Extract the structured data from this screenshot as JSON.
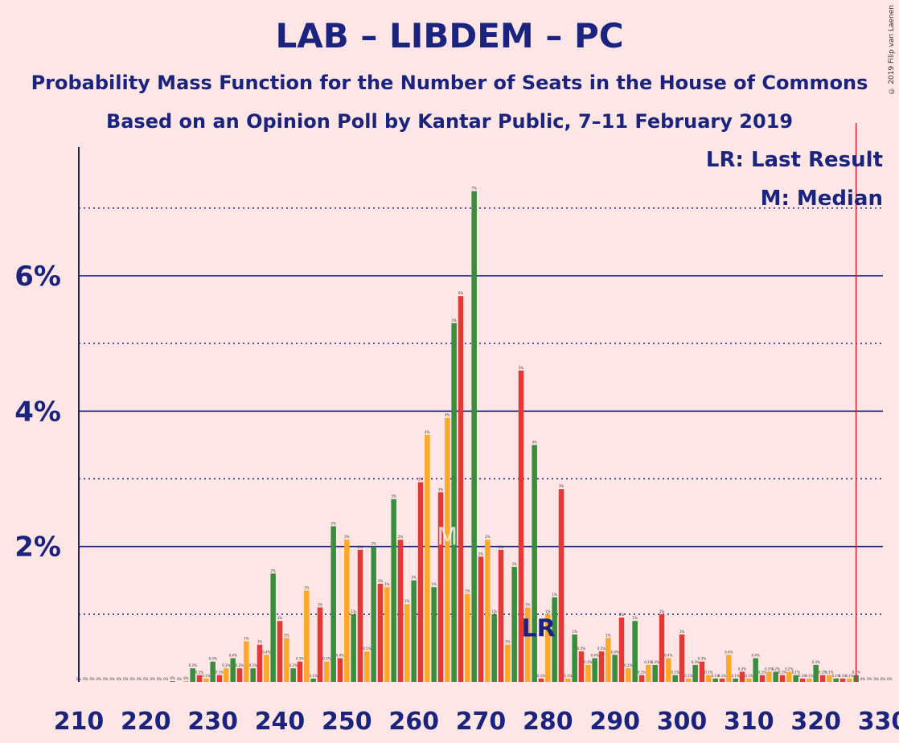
{
  "title": "LAB – LIBDEM – PC",
  "subtitle_1": "Probability Mass Function for the Number of Seats in the House of Commons",
  "subtitle_2": "Based on an Opinion Poll by Kantar Public, 7–11 February 2019",
  "copyright": "© 2019 Filip van Laenen",
  "legend": {
    "last_result": "LR: Last Result",
    "median": "M: Median"
  },
  "colors": {
    "background": "#FFE6E6",
    "text": "#1A237E",
    "series": [
      "#E53935",
      "#FFA726",
      "#388E3C"
    ],
    "majority_line": "#C62828"
  },
  "chart_data": {
    "type": "bar",
    "x_range": [
      210,
      330
    ],
    "x_tick_labels": [
      "210",
      "220",
      "230",
      "240",
      "250",
      "260",
      "270",
      "280",
      "290",
      "300",
      "310",
      "320",
      "330"
    ],
    "y_tick_labels": [
      "2%",
      "4%",
      "6%"
    ],
    "y_max_percent": 7.9,
    "grid": true,
    "legend_position": "top-right",
    "median_seats": 265,
    "last_result_seats": 278,
    "majority_seats": 326,
    "seats_start": 210,
    "values_percent": [
      0,
      0,
      0,
      0,
      0,
      0,
      0,
      0,
      0,
      0,
      0,
      0,
      0,
      0,
      0.01,
      0,
      0.01,
      0.2,
      0.1,
      0.05,
      0.3,
      0.1,
      0.2,
      0.35,
      0.2,
      0.6,
      0.2,
      0.55,
      0.4,
      1.6,
      0.9,
      0.65,
      0.2,
      0.3,
      1.35,
      0.05,
      1.1,
      0.3,
      2.3,
      0.35,
      2.1,
      1.0,
      1.95,
      0.45,
      2.0,
      1.45,
      1.4,
      2.7,
      2.1,
      1.15,
      1.5,
      2.95,
      3.65,
      1.4,
      2.8,
      3.9,
      5.3,
      5.7,
      1.3,
      7.25,
      1.85,
      2.1,
      1.0,
      1.95,
      0.55,
      1.7,
      4.6,
      1.1,
      3.5,
      0.05,
      1.0,
      1.25,
      2.85,
      0.05,
      0.7,
      0.45,
      0.25,
      0.35,
      0.45,
      0.65,
      0.4,
      0.95,
      0.2,
      0.9,
      0.1,
      0.25,
      0.25,
      1.0,
      0.35,
      0.1,
      0.7,
      0.05,
      0.25,
      0.3,
      0.1,
      0.05,
      0.05,
      0.4,
      0.05,
      0.15,
      0.05,
      0.35,
      0.1,
      0.15,
      0.15,
      0.1,
      0.15,
      0.1,
      0.05,
      0.05,
      0.25,
      0.1,
      0.1,
      0.05,
      0.05,
      0.05,
      0.1,
      0,
      0,
      0,
      0,
      0
    ]
  }
}
